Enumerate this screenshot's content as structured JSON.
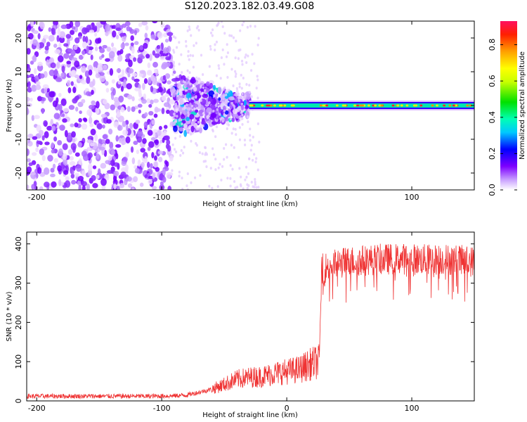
{
  "title": "S120.2023.182.03.49.G08",
  "chart_data": [
    {
      "type": "heatmap",
      "xlabel": "Height of straight line (km)",
      "ylabel": "Frequency (Hz)",
      "xlim": [
        -208,
        150
      ],
      "ylim": [
        -25,
        25
      ],
      "xticks": [
        -200,
        -100,
        0,
        100
      ],
      "yticks": [
        -20,
        -10,
        0,
        10,
        20
      ],
      "colorbar": {
        "label": "Normalized spectral amplitude",
        "range": [
          0,
          0.93
        ],
        "ticks": [
          0.0,
          0.2,
          0.4,
          0.6,
          0.8
        ]
      },
      "regions": [
        {
          "x_range": [
            -208,
            -92
          ],
          "freq_range": [
            -25,
            25
          ],
          "amplitude": 0.15,
          "pattern": "scattered noise"
        },
        {
          "x_range": [
            -92,
            -30
          ],
          "freq_range": [
            -12,
            8
          ],
          "amplitude": 0.3,
          "pattern": "broad turbulent band"
        },
        {
          "x_range": [
            -30,
            150
          ],
          "freq_range": [
            -1.5,
            1.5
          ],
          "amplitude": 0.75,
          "pattern": "narrow stable line near 0 Hz"
        }
      ]
    },
    {
      "type": "line",
      "xlabel": "Height of straight line (km)",
      "ylabel": "SNR (10 * v/v)",
      "xlim": [
        -208,
        150
      ],
      "ylim": [
        0,
        430
      ],
      "xticks": [
        -200,
        -100,
        0,
        100
      ],
      "yticks": [
        0,
        100,
        200,
        300,
        400
      ],
      "series": [
        {
          "color": "#ef3333",
          "x": [
            -208,
            -190,
            -170,
            -150,
            -130,
            -110,
            -90,
            -80,
            -70,
            -60,
            -50,
            -40,
            -30,
            -20,
            -10,
            0,
            10,
            20,
            26,
            28,
            35,
            50,
            70,
            90,
            110,
            130,
            150
          ],
          "y": [
            12,
            12,
            12,
            12,
            12,
            12,
            13,
            15,
            22,
            30,
            42,
            55,
            60,
            62,
            70,
            75,
            80,
            95,
            100,
            335,
            345,
            355,
            360,
            362,
            360,
            360,
            355
          ]
        }
      ]
    }
  ]
}
